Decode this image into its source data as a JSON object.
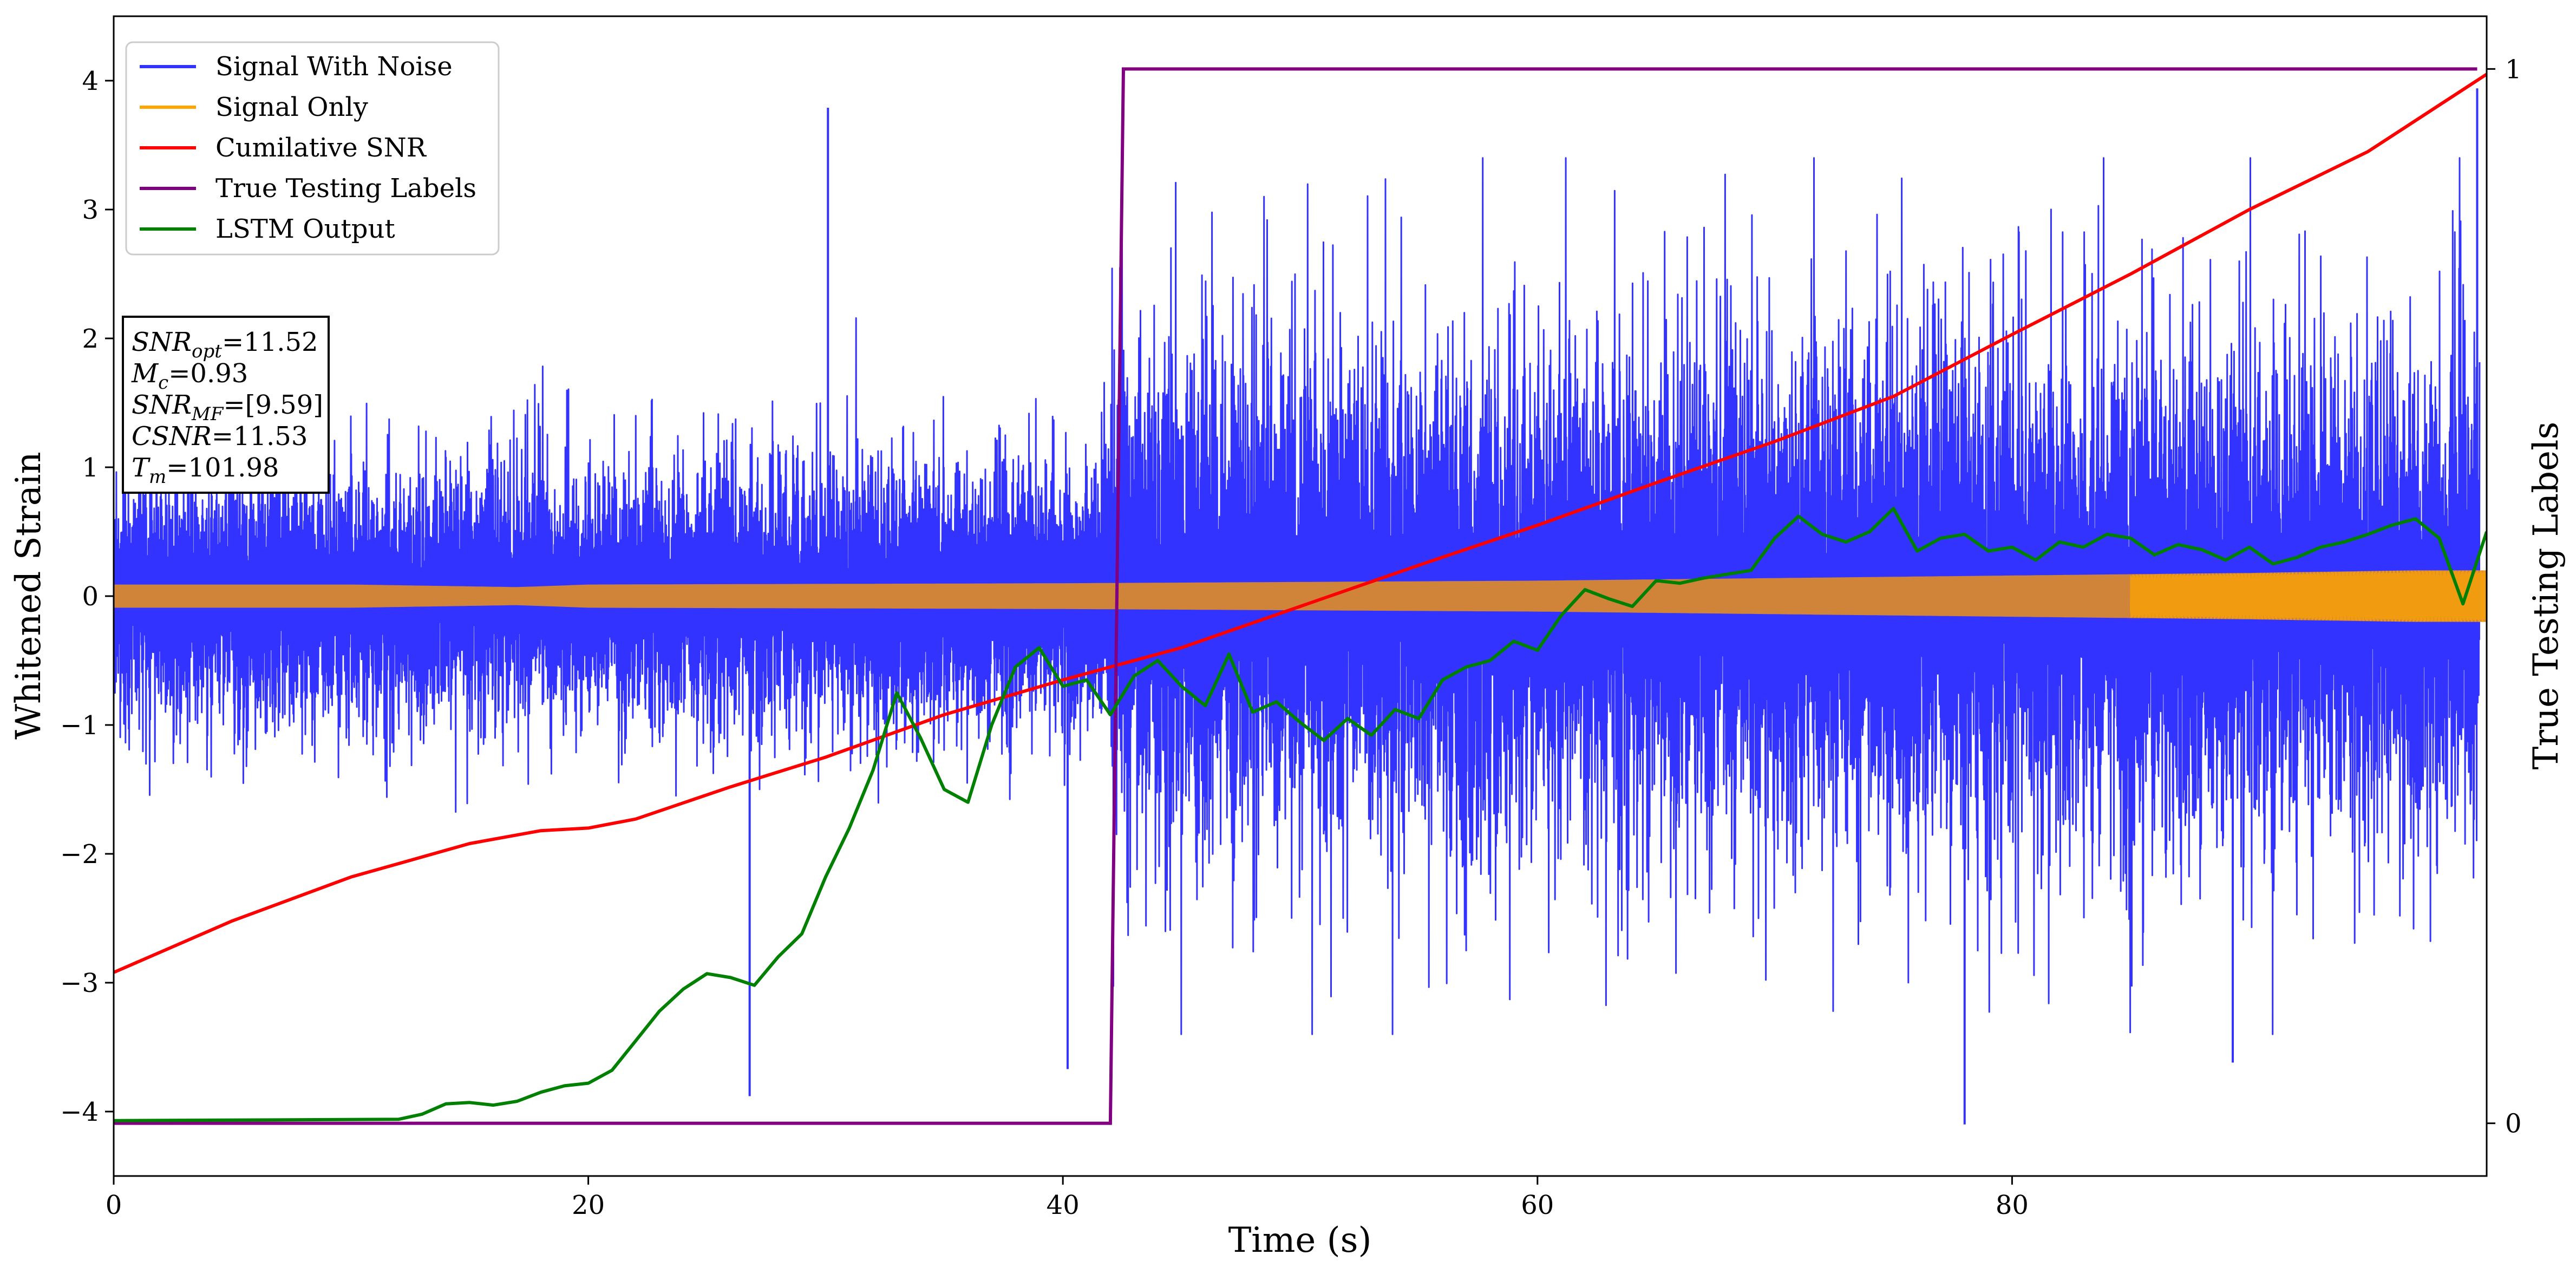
{
  "chart_data": {
    "type": "line",
    "xlabel": "Time (s)",
    "ylabel": "Whitened Strain",
    "y2label": "True Testing Labels",
    "xlim": [
      0,
      100
    ],
    "ylim": [
      -4.5,
      4.5
    ],
    "y2lim": [
      -0.05,
      1.05
    ],
    "xticks": [
      0,
      20,
      40,
      60,
      80
    ],
    "yticks": [
      -4,
      -3,
      -2,
      -1,
      0,
      1,
      2,
      3,
      4
    ],
    "y2ticks": [
      0,
      1
    ],
    "grid": false,
    "legend_position": "top-left",
    "series": [
      {
        "name": "Signal With Noise",
        "color": "#3333ff",
        "style": "dense noise",
        "amplitude_envelope": [
          0.5,
          0.5,
          1.0,
          1.0
        ],
        "notable_extremes": [
          {
            "x": 30.1,
            "y": 3.79
          },
          {
            "x": 99.6,
            "y": 3.94
          },
          {
            "x": 26.8,
            "y": -3.88
          },
          {
            "x": 78.0,
            "y": -4.1
          },
          {
            "x": 40.2,
            "y": -3.67
          },
          {
            "x": 89.3,
            "y": -3.62
          }
        ]
      },
      {
        "name": "Signal Only",
        "color": "#ffa500",
        "envelope": {
          "x": [
            0,
            10,
            17,
            20,
            40,
            60,
            80,
            90,
            97,
            100
          ],
          "amplitude": [
            0.09,
            0.09,
            0.07,
            0.09,
            0.1,
            0.12,
            0.16,
            0.18,
            0.2,
            0.2
          ]
        }
      },
      {
        "name": "Cumilative SNR",
        "color": "#ff0000",
        "x": [
          0,
          5,
          10,
          15,
          18,
          20,
          22,
          26,
          30,
          35,
          40,
          45,
          50,
          55,
          60,
          65,
          70,
          75,
          80,
          85,
          90,
          95,
          100
        ],
        "y": [
          -2.92,
          -2.52,
          -2.18,
          -1.92,
          -1.82,
          -1.8,
          -1.73,
          -1.48,
          -1.25,
          -0.92,
          -0.65,
          -0.4,
          -0.08,
          0.24,
          0.55,
          0.88,
          1.2,
          1.55,
          2.03,
          2.5,
          3.0,
          3.45,
          4.05
        ]
      },
      {
        "name": "True Testing Labels",
        "color": "#800080",
        "axis": "right",
        "x": [
          0,
          42.0,
          42.55,
          99.6
        ],
        "y": [
          0,
          0,
          1,
          1
        ]
      },
      {
        "name": "LSTM Output",
        "color": "#008000",
        "axis": "left",
        "x": [
          0,
          12,
          13,
          14,
          15,
          16,
          17,
          18,
          19,
          20,
          21,
          22,
          23,
          24,
          25,
          26,
          27,
          28,
          29,
          30,
          31,
          32,
          33,
          34,
          35,
          36,
          37,
          38,
          39,
          40,
          41,
          42,
          43,
          44,
          45,
          46,
          47,
          48,
          49,
          50,
          51,
          52,
          53,
          54,
          55,
          56,
          57,
          58,
          59,
          60,
          61,
          62,
          63,
          64,
          65,
          66,
          67,
          68,
          69,
          70,
          71,
          72,
          73,
          74,
          75,
          76,
          77,
          78,
          79,
          80,
          81,
          82,
          83,
          84,
          85,
          86,
          87,
          88,
          89,
          90,
          91,
          92,
          93,
          94,
          95,
          96,
          97,
          98,
          99,
          100
        ],
        "y": [
          -4.07,
          -4.06,
          -4.02,
          -3.94,
          -3.93,
          -3.95,
          -3.92,
          -3.85,
          -3.8,
          -3.78,
          -3.68,
          -3.45,
          -3.22,
          -3.05,
          -2.93,
          -2.96,
          -3.02,
          -2.8,
          -2.62,
          -2.18,
          -1.8,
          -1.35,
          -0.75,
          -1.1,
          -1.5,
          -1.6,
          -1.0,
          -0.55,
          -0.4,
          -0.7,
          -0.65,
          -0.92,
          -0.62,
          -0.5,
          -0.7,
          -0.85,
          -0.45,
          -0.9,
          -0.82,
          -0.98,
          -1.12,
          -0.95,
          -1.08,
          -0.88,
          -0.95,
          -0.65,
          -0.55,
          -0.5,
          -0.35,
          -0.42,
          -0.15,
          0.05,
          -0.02,
          -0.08,
          0.12,
          0.1,
          0.14,
          0.17,
          0.2,
          0.45,
          0.62,
          0.48,
          0.42,
          0.5,
          0.68,
          0.35,
          0.45,
          0.48,
          0.35,
          0.38,
          0.28,
          0.42,
          0.38,
          0.48,
          0.45,
          0.32,
          0.4,
          0.36,
          0.28,
          0.38,
          0.25,
          0.3,
          0.38,
          0.42,
          0.48,
          0.55,
          0.6,
          0.45,
          -0.06,
          0.5
        ]
      }
    ],
    "annotation": {
      "lines": [
        {
          "var": "SNR",
          "sub": "opt",
          "value": "=11.52"
        },
        {
          "var": "M",
          "sub": "c",
          "value": "=0.93"
        },
        {
          "var": "SNR",
          "sub": "MF",
          "value": "=[9.59]"
        },
        {
          "var": "CSNR",
          "sub": "",
          "value": "=11.53"
        },
        {
          "var": "T",
          "sub": "m",
          "value": "=101.98"
        }
      ]
    }
  }
}
